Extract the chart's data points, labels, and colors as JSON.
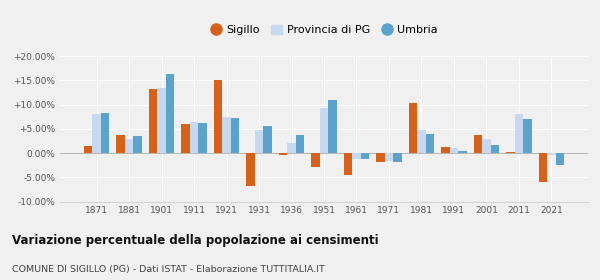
{
  "years": [
    1871,
    1881,
    1901,
    1911,
    1921,
    1931,
    1936,
    1951,
    1961,
    1971,
    1981,
    1991,
    2001,
    2011,
    2021
  ],
  "sigillo": [
    1.5,
    3.7,
    13.3,
    6.0,
    15.0,
    -6.8,
    -0.5,
    -2.8,
    -4.5,
    -1.8,
    10.3,
    1.2,
    3.8,
    0.3,
    -6.0
  ],
  "provincia_pg": [
    8.1,
    2.9,
    13.4,
    6.3,
    7.5,
    4.8,
    2.0,
    9.2,
    -1.2,
    -1.7,
    4.8,
    1.0,
    3.0,
    8.0,
    -0.3
  ],
  "umbria": [
    8.2,
    3.6,
    16.3,
    6.1,
    7.2,
    5.5,
    3.7,
    11.0,
    -1.3,
    -1.9,
    3.9,
    0.5,
    1.7,
    7.0,
    -2.5
  ],
  "sigillo_color": "#d4621a",
  "provincia_color": "#c8d9ef",
  "umbria_color": "#5ba3cc",
  "ylim": [
    -10,
    20
  ],
  "yticks": [
    -10,
    -5,
    0,
    5,
    10,
    15,
    20
  ],
  "ytick_labels": [
    "-10.00%",
    "-5.00%",
    "0.00%",
    "+5.00%",
    "+10.00%",
    "+15.00%",
    "+20.00%"
  ],
  "title": "Variazione percentuale della popolazione ai censimenti",
  "subtitle": "COMUNE DI SIGILLO (PG) - Dati ISTAT - Elaborazione TUTTITALIA.IT",
  "legend_labels": [
    "Sigillo",
    "Provincia di PG",
    "Umbria"
  ],
  "background_color": "#f0f0f0",
  "grid_color": "#ffffff",
  "bar_width": 0.26
}
